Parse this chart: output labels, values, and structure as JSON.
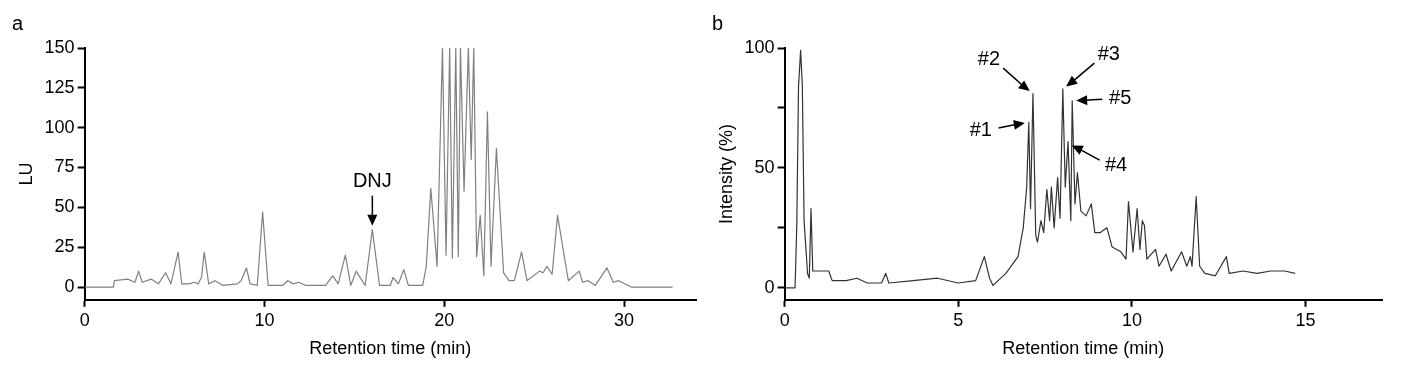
{
  "chart_data": [
    {
      "type": "line",
      "title": "a",
      "xlabel": "Retention time (min)",
      "ylabel": "LU",
      "xlim": [
        0,
        34
      ],
      "ylim": [
        -8,
        150
      ],
      "xticks": [
        0,
        10,
        20,
        30
      ],
      "yticks": [
        0,
        25,
        50,
        75,
        100,
        125,
        150
      ],
      "grid": false,
      "marker": "none",
      "line_style": "solid",
      "annotations": [
        {
          "text": "DNJ",
          "x": 16.0,
          "y": 36
        }
      ],
      "series": [
        {
          "color": "#808080",
          "x": [
            0,
            1.6,
            1.65,
            2.4,
            2.8,
            3.0,
            3.2,
            3.7,
            4.1,
            4.5,
            4.8,
            5.2,
            5.4,
            5.8,
            6.1,
            6.3,
            6.5,
            6.65,
            6.9,
            7.25,
            7.7,
            8.5,
            8.7,
            9.0,
            9.2,
            9.6,
            9.9,
            10.2,
            11.0,
            11.3,
            11.6,
            11.9,
            12.3,
            13.4,
            13.8,
            14.1,
            14.5,
            14.8,
            15.1,
            15.6,
            16.0,
            16.4,
            17.0,
            17.15,
            17.45,
            17.75,
            18.0,
            18.8,
            19.0,
            19.25,
            19.6,
            19.9,
            20.1,
            20.3,
            20.45,
            20.64,
            20.78,
            20.9,
            21.1,
            21.34,
            21.5,
            21.64,
            21.8,
            22.0,
            22.2,
            22.4,
            22.6,
            22.9,
            23.3,
            23.6,
            23.9,
            24.3,
            24.6,
            25.3,
            25.5,
            25.7,
            26.0,
            26.3,
            26.9,
            27.5,
            27.7,
            28.0,
            28.4,
            29.05,
            29.4,
            29.7,
            30.4,
            32.7
          ],
          "values": [
            0,
            0,
            4,
            5,
            3,
            10,
            3,
            5,
            2,
            9,
            2,
            22,
            2,
            2,
            3,
            2,
            6,
            22,
            2,
            4,
            1,
            2,
            4,
            12,
            2,
            1,
            47,
            1,
            1,
            4,
            2,
            3,
            1,
            1,
            7,
            2,
            20,
            1,
            10,
            1,
            36,
            1,
            1,
            6,
            2,
            11,
            1,
            1,
            13,
            62,
            13,
            150,
            20,
            150,
            18,
            150,
            19,
            150,
            60,
            150,
            80,
            150,
            19,
            45,
            7,
            110,
            13,
            87,
            9,
            4,
            4,
            22,
            4,
            10,
            9,
            13,
            8,
            45,
            4,
            10,
            3,
            4,
            1,
            12,
            3,
            4,
            0,
            0
          ]
        }
      ]
    },
    {
      "type": "line",
      "title": "b",
      "xlabel": "Retention time (min)",
      "ylabel": "Intensity (%)",
      "xlim": [
        0,
        17.2
      ],
      "ylim": [
        -5,
        100
      ],
      "xticks": [
        0,
        5,
        10,
        15
      ],
      "yticks": [
        0,
        {
          "value": 25,
          "label": null
        },
        50,
        {
          "value": 75,
          "label": null
        },
        100
      ],
      "grid": false,
      "marker": "none",
      "line_style": "solid",
      "annotations": [
        {
          "text": "#1",
          "x": 7.03,
          "y": 69
        },
        {
          "text": "#2",
          "x": 7.15,
          "y": 81
        },
        {
          "text": "#3",
          "x": 8.01,
          "y": 83
        },
        {
          "text": "#4",
          "x": 8.16,
          "y": 60
        },
        {
          "text": "#5",
          "x": 8.28,
          "y": 78
        }
      ],
      "series": [
        {
          "color": "#333333",
          "x": [
            0,
            0.3,
            0.35,
            0.4,
            0.46,
            0.51,
            0.56,
            0.66,
            0.71,
            0.76,
            0.81,
            0.96,
            1.27,
            1.37,
            1.77,
            2.08,
            2.38,
            2.79,
            2.91,
            3.0,
            3.7,
            4.4,
            5.0,
            5.5,
            5.75,
            5.9,
            6.0,
            6.37,
            6.72,
            6.87,
            6.97,
            7.03,
            7.08,
            7.15,
            7.23,
            7.28,
            7.38,
            7.46,
            7.55,
            7.63,
            7.68,
            7.76,
            7.86,
            7.93,
            8.01,
            8.08,
            8.16,
            8.24,
            8.28,
            8.36,
            8.43,
            8.53,
            8.68,
            8.83,
            8.93,
            9.08,
            9.28,
            9.43,
            9.68,
            9.83,
            9.9,
            10.03,
            10.15,
            10.23,
            10.3,
            10.36,
            10.43,
            10.68,
            10.78,
            10.98,
            11.13,
            11.43,
            11.58,
            11.68,
            11.73,
            11.85,
            11.95,
            12.1,
            12.4,
            12.72,
            12.8,
            13.2,
            13.6,
            14.0,
            14.4,
            14.7
          ],
          "values": [
            0,
            0,
            26,
            84,
            99,
            84,
            28,
            6,
            4,
            33,
            7,
            7,
            7,
            3,
            3,
            4,
            2,
            2,
            6,
            2,
            3,
            4,
            2,
            3,
            13,
            4,
            1,
            6,
            13,
            25,
            42,
            69,
            33,
            81,
            22,
            19,
            28,
            23,
            41,
            28,
            42,
            25,
            46,
            29,
            83,
            42,
            61,
            28,
            78,
            35,
            48,
            32,
            30,
            35,
            23,
            23,
            25,
            17,
            15,
            12,
            36,
            15,
            33,
            16,
            28,
            26,
            12,
            16,
            9,
            14,
            7,
            15,
            9,
            13,
            9,
            38,
            9,
            6,
            5,
            13,
            6,
            7,
            6,
            7,
            7,
            6
          ]
        }
      ]
    }
  ]
}
